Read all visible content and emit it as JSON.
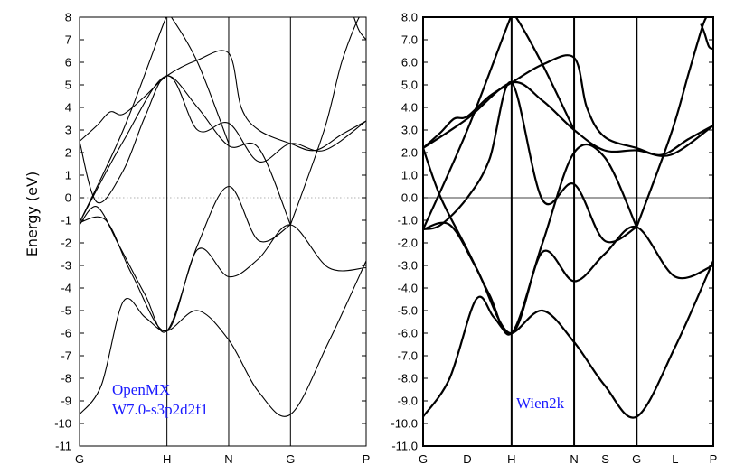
{
  "chart_data": [
    {
      "type": "line",
      "panel": "left",
      "ylabel": "Energy (eV)",
      "ylim": [
        -11,
        8
      ],
      "yticks": [
        8,
        7,
        6,
        5,
        4,
        3,
        2,
        1,
        0,
        -1,
        -2,
        -3,
        -4,
        -5,
        -6,
        -7,
        -8,
        -9,
        -10,
        -11
      ],
      "ytick_labels": [
        "8",
        "7",
        "6",
        "5",
        "4",
        "3",
        "2",
        "1",
        "0",
        "-1",
        "-2",
        "-3",
        "-4",
        "-5",
        "-6",
        "-7",
        "-8",
        "-9",
        "-10",
        "-11"
      ],
      "k_points": [
        {
          "label": "G",
          "x": 0
        },
        {
          "label": "H",
          "x": 1
        },
        {
          "label": "N",
          "x": 1.707
        },
        {
          "label": "G",
          "x": 2.414
        },
        {
          "label": "P",
          "x": 3.28
        }
      ],
      "fermi_level": 0,
      "fermi_line_style": "dotted",
      "annotation": [
        "OpenMX",
        "W7.0-s3p2d2f1"
      ],
      "annotation_color": "#1a1aff",
      "series": [
        {
          "x": [
            0,
            0.25,
            0.5,
            0.75,
            1,
            1.35,
            1.707,
            2.05,
            2.414,
            2.85,
            3.28
          ],
          "y": [
            -9.6,
            -8.3,
            -4.6,
            -5.3,
            -5.9,
            -5.0,
            -6.3,
            -8.6,
            -9.6,
            -6.4,
            -2.8
          ]
        },
        {
          "x": [
            0,
            0.3,
            0.6,
            1,
            1.35,
            1.707,
            2.05,
            2.414,
            2.85,
            3.28
          ],
          "y": [
            -1.1,
            -1.0,
            -3.4,
            -5.9,
            -2.3,
            -3.5,
            -2.7,
            -1.2,
            -3.1,
            -3.1
          ]
        },
        {
          "x": [
            0,
            0.2,
            0.45,
            0.75,
            1,
            1.35,
            1.707,
            2.05,
            2.414
          ],
          "y": [
            -1.2,
            -0.4,
            -2.1,
            -4.3,
            -5.9,
            -2.1,
            0.5,
            -1.9,
            -1.2
          ]
        },
        {
          "x": [
            0,
            0.2,
            0.5,
            0.75,
            1,
            1.35,
            1.707,
            2.05,
            2.414
          ],
          "y": [
            2.5,
            -0.2,
            1.2,
            3.6,
            5.4,
            4.0,
            2.3,
            2.2,
            -1.2
          ]
        },
        {
          "x": [
            0,
            0.2,
            0.35,
            0.5,
            0.75,
            1,
            1.35,
            1.707,
            1.85,
            2.05,
            2.414,
            2.7,
            3.0,
            3.28
          ],
          "y": [
            2.5,
            3.2,
            3.8,
            3.7,
            4.5,
            5.4,
            6.1,
            6.4,
            4.0,
            3.0,
            2.4,
            2.1,
            2.8,
            3.4
          ]
        },
        {
          "x": [
            0,
            0.5,
            1,
            1.35,
            1.707,
            2.05,
            2.414,
            2.8,
            3.28
          ],
          "y": [
            -1.1,
            2.5,
            5.4,
            3.0,
            3.3,
            1.6,
            2.4,
            2.1,
            3.4
          ]
        },
        {
          "x": [
            0,
            0.5,
            0.95,
            1,
            1.05,
            1.35,
            1.707
          ],
          "y": [
            -1.1,
            3.0,
            7.6,
            8.0,
            8.0,
            6.0,
            2.4
          ]
        },
        {
          "x": [
            2.414,
            2.8,
            3.0,
            3.2,
            3.28
          ],
          "y": [
            -1.2,
            3.0,
            6.0,
            8.0,
            8.0
          ]
        },
        {
          "x": [
            3.14,
            3.2,
            3.28
          ],
          "y": [
            8.0,
            7.4,
            7.0
          ]
        }
      ]
    },
    {
      "type": "line",
      "panel": "right",
      "ylim": [
        -11.0,
        8.0
      ],
      "yticks": [
        8.0,
        7.0,
        6.0,
        5.0,
        4.0,
        3.0,
        2.0,
        1.0,
        0.0,
        -1.0,
        -2.0,
        -3.0,
        -4.0,
        -5.0,
        -6.0,
        -7.0,
        -8.0,
        -9.0,
        -10.0,
        -11.0
      ],
      "ytick_labels": [
        "8.0",
        "7.0",
        "6.0",
        "5.0",
        "4.0",
        "3.0",
        "2.0",
        "1.0",
        "0.0",
        "-1.0",
        "-2.0",
        "-3.0",
        "-4.0",
        "-5.0",
        "-6.0",
        "-7.0",
        "-8.0",
        "-9.0",
        "-10.0",
        "-11.0"
      ],
      "k_points": [
        {
          "label": "G",
          "x": 0
        },
        {
          "label": "D",
          "x": 0.5
        },
        {
          "label": "H",
          "x": 1
        },
        {
          "label": "N",
          "x": 1.707
        },
        {
          "label": "S",
          "x": 2.06
        },
        {
          "label": "G",
          "x": 2.414
        },
        {
          "label": "L",
          "x": 2.85
        },
        {
          "label": "P",
          "x": 3.28
        }
      ],
      "k_vlines": [
        1,
        1.707,
        2.414
      ],
      "fermi_level": 0,
      "fermi_line_style": "solid",
      "annotation": [
        "Wien2k"
      ],
      "annotation_color": "#1a1aff",
      "series": [
        {
          "x": [
            0,
            0.3,
            0.6,
            0.8,
            1,
            1.35,
            1.707,
            2.05,
            2.414,
            2.85,
            3.28
          ],
          "y": [
            -9.7,
            -8.0,
            -4.5,
            -5.3,
            -6.0,
            -5.0,
            -6.4,
            -8.3,
            -9.7,
            -6.6,
            -2.8
          ]
        },
        {
          "x": [
            0,
            0.3,
            0.6,
            1,
            1.35,
            1.707,
            2.05,
            2.414,
            2.85,
            3.28
          ],
          "y": [
            -1.4,
            -1.2,
            -3.1,
            -6.0,
            -2.4,
            -3.7,
            -2.5,
            -1.3,
            -3.5,
            -3.0
          ]
        },
        {
          "x": [
            0,
            0.2,
            0.5,
            0.75,
            1,
            1.35,
            1.707,
            2.05,
            2.414
          ],
          "y": [
            -1.4,
            -1.2,
            0.0,
            1.7,
            5.1,
            -0.1,
            0.6,
            -1.9,
            -1.3
          ]
        },
        {
          "x": [
            0,
            0.2,
            0.5,
            0.75,
            1,
            1.35,
            1.707,
            2.05,
            2.414
          ],
          "y": [
            2.2,
            0.0,
            -2.3,
            -4.3,
            -6.0,
            -2.0,
            2.0,
            1.8,
            -1.3
          ]
        },
        {
          "x": [
            0,
            0.2,
            0.35,
            0.5,
            0.75,
            1,
            1.35,
            1.707,
            1.85,
            2.05,
            2.414,
            2.7,
            3.0,
            3.28
          ],
          "y": [
            2.2,
            2.9,
            3.5,
            3.6,
            4.5,
            5.1,
            5.9,
            6.2,
            4.0,
            2.7,
            2.2,
            1.9,
            2.6,
            3.2
          ]
        },
        {
          "x": [
            0,
            0.5,
            1,
            1.35,
            1.707,
            2.05,
            2.414,
            2.8,
            3.28
          ],
          "y": [
            2.2,
            3.5,
            5.1,
            4.3,
            3.0,
            2.1,
            2.1,
            1.9,
            3.2
          ]
        },
        {
          "x": [
            0,
            0.5,
            0.95,
            1,
            1.05,
            1.35,
            1.707
          ],
          "y": [
            -1.4,
            3.0,
            7.6,
            8.0,
            8.0,
            5.9,
            3.0
          ]
        },
        {
          "x": [
            2.414,
            2.8,
            3.0,
            3.15,
            3.2
          ],
          "y": [
            -1.3,
            2.8,
            5.5,
            7.5,
            8.0
          ]
        },
        {
          "x": [
            3.14,
            3.18,
            3.23,
            3.28
          ],
          "y": [
            7.7,
            7.3,
            6.7,
            6.6
          ]
        }
      ]
    }
  ]
}
